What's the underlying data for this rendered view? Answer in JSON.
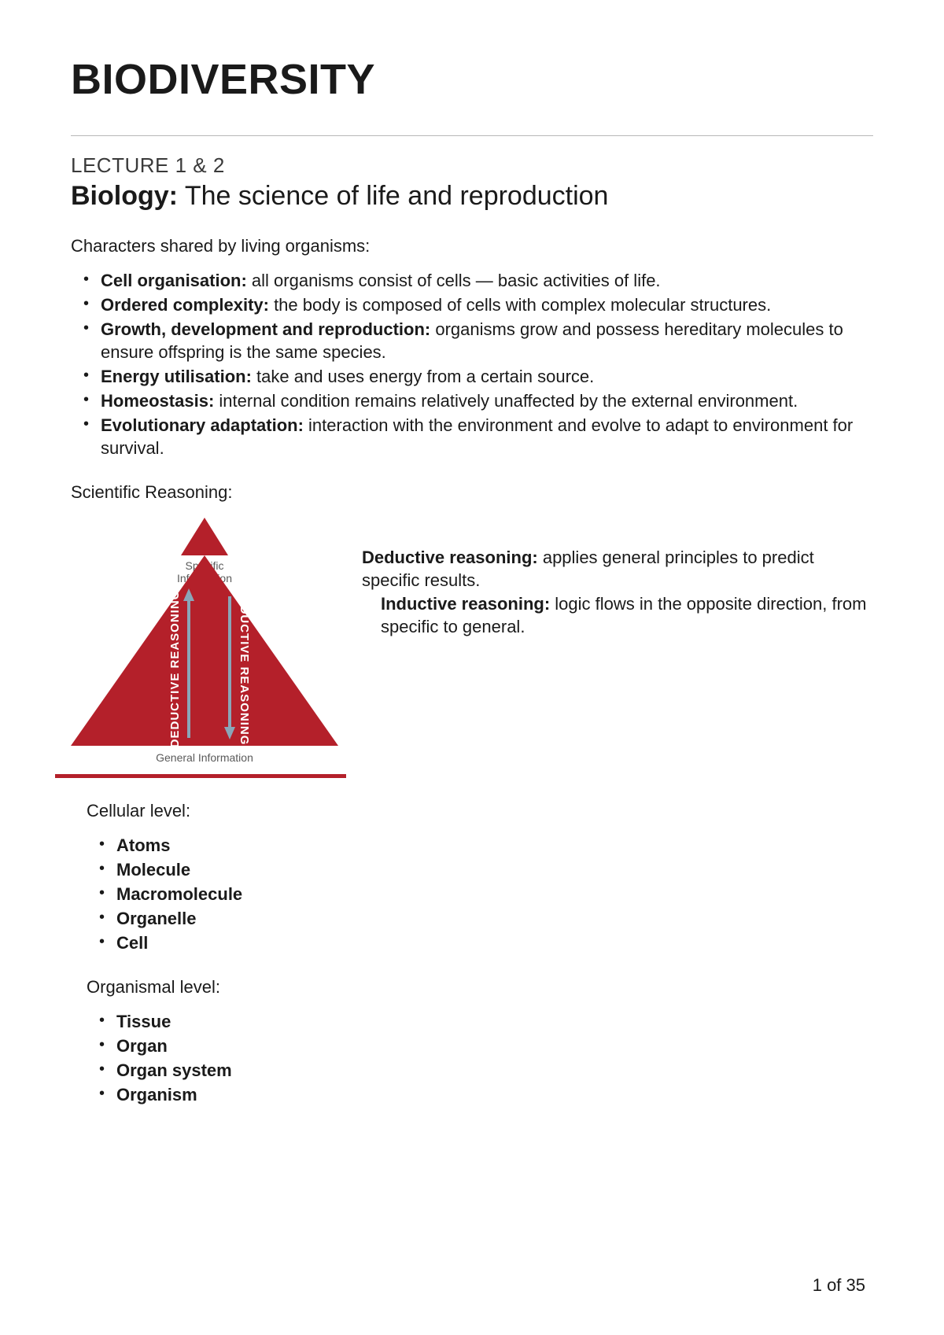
{
  "title": "BIODIVERSITY",
  "lecture_label": "LECTURE 1 & 2",
  "subtitle_bold": "Biology:",
  "subtitle_rest": " The science of life and reproduction",
  "characters_intro": "Characters shared by living organisms:",
  "characters": [
    {
      "term": "Cell organisation:",
      "desc": " all organisms consist of cells — basic activities of life."
    },
    {
      "term": "Ordered complexity:",
      "desc": " the body is composed of cells with complex molecular structures."
    },
    {
      "term": "Growth, development and reproduction:",
      "desc": " organisms grow and possess hereditary molecules to ensure offspring is the same species."
    },
    {
      "term": "Energy utilisation:",
      "desc": " take and uses energy from a certain source."
    },
    {
      "term": "Homeostasis:",
      "desc": " internal condition remains relatively unaffected by the external environment."
    },
    {
      "term": "Evolutionary adaptation:",
      "desc": " interaction with the environment and evolve to adapt to environment for survival."
    }
  ],
  "scientific_label": "Scientific Reasoning:",
  "triangle": {
    "top_label_1": "Specific",
    "top_label_2": "Information",
    "bottom_label": "General Information",
    "left_text": "DEDUCTIVE REASONING",
    "right_text": "INDUCTIVE REASONING",
    "fill_color": "#b4202a",
    "arrow_color": "#8aa6b8",
    "text_color": "#ffffff",
    "label_color": "#5a5a5a"
  },
  "reasoning_lines": [
    {
      "term": "Deductive reasoning:",
      "desc": " applies general principles to predict specific results."
    },
    {
      "term": "Inductive reasoning:",
      "desc": " logic flows in the opposite direction, from specific to general."
    }
  ],
  "cellular_label": "Cellular level:",
  "cellular_items": [
    "Atoms",
    "Molecule",
    "Macromolecule",
    "Organelle",
    "Cell"
  ],
  "organismal_label": "Organismal level:",
  "organismal_items": [
    "Tissue",
    "Organ",
    "Organ system",
    "Organism"
  ],
  "page_number": "1 of 35"
}
